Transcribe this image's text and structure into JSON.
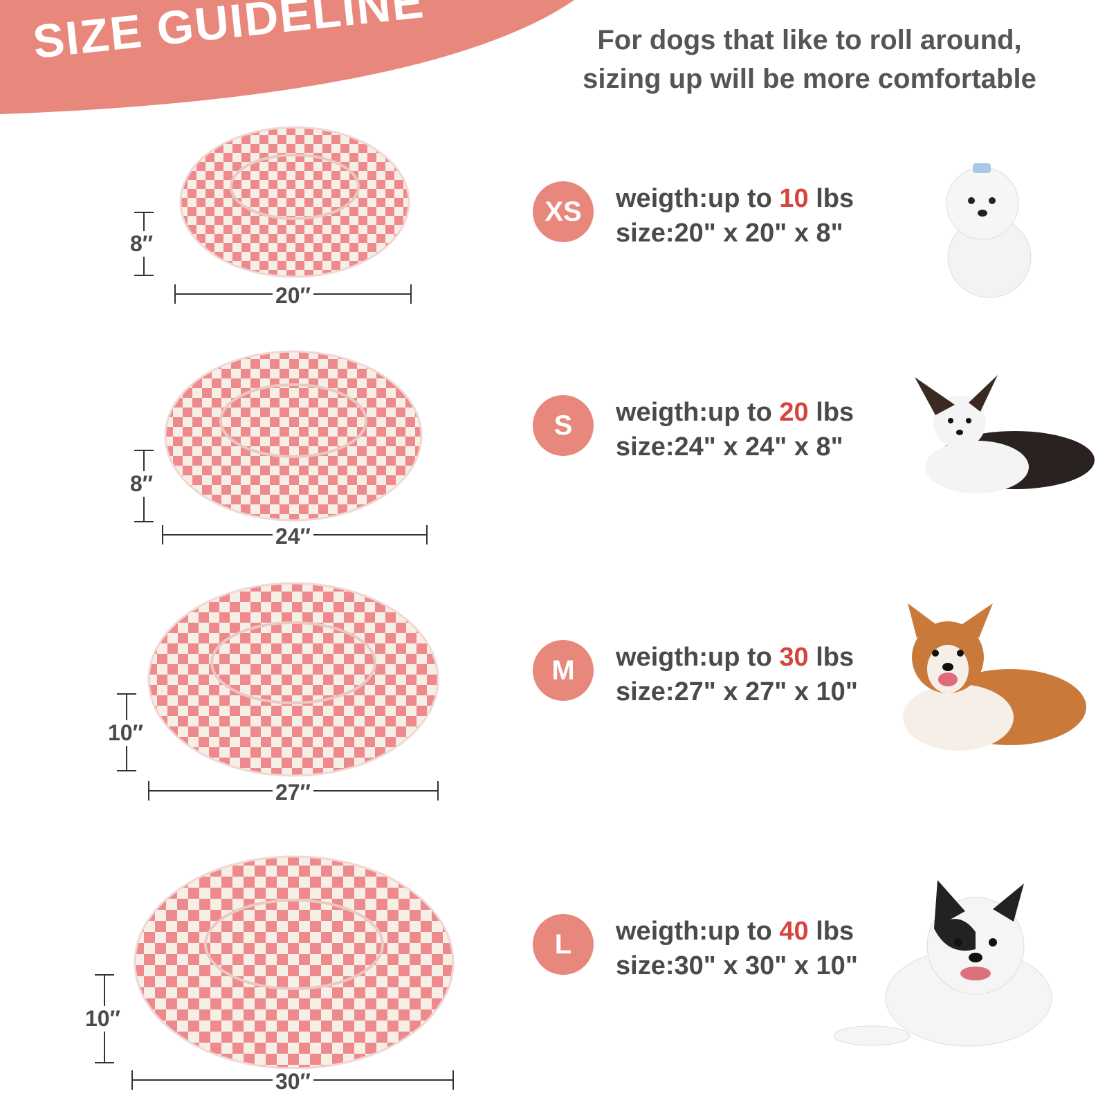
{
  "header": {
    "title": "SIZE GUIDELINE",
    "tagline_line1": "For dogs that like to roll around,",
    "tagline_line2": "sizing up will be more comfortable"
  },
  "colors": {
    "banner": "#e8877b",
    "badge": "#e8877b",
    "highlight": "#d6453d",
    "bed_pink": "#ee8a8e",
    "bed_cream": "#f6efe6"
  },
  "sizes": [
    {
      "badge": "XS",
      "weight_prefix": "weigth:up to ",
      "weight_value": "10",
      "weight_unit": " lbs",
      "size_text": "size:20\" x 20\" x 8\"",
      "height_label": "8″",
      "width_label": "20″",
      "dog": "white-maltese-dog"
    },
    {
      "badge": "S",
      "weight_prefix": "weigth:up to ",
      "weight_value": "20",
      "weight_unit": " lbs",
      "size_text": "size:24\" x 24\" x 8\"",
      "height_label": "8″",
      "width_label": "24″",
      "dog": "papillon-dog"
    },
    {
      "badge": "M",
      "weight_prefix": "weigth:up to ",
      "weight_value": "30",
      "weight_unit": " lbs",
      "size_text": "size:27\" x 27\" x 10\"",
      "height_label": "10″",
      "width_label": "27″",
      "dog": "corgi-dog"
    },
    {
      "badge": "L",
      "weight_prefix": "weigth:up to ",
      "weight_value": "40",
      "weight_unit": " lbs",
      "size_text": "size:30\" x 30\" x 10\"",
      "height_label": "10″",
      "width_label": "30″",
      "dog": "french-bulldog"
    }
  ]
}
